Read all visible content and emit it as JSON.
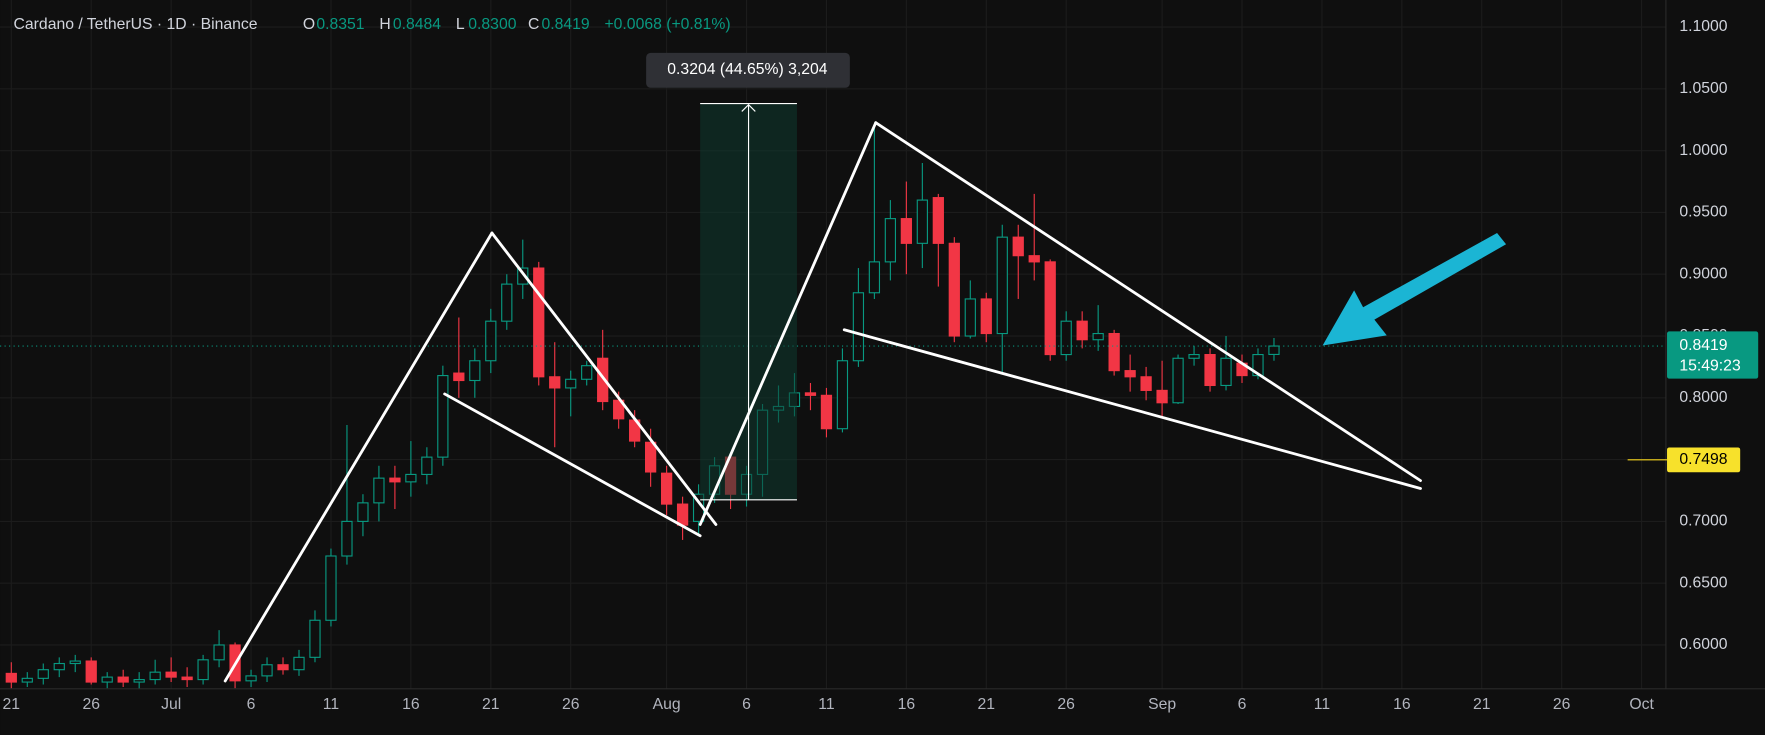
{
  "header": {
    "symbol": "Cardano / TetherUS · 1D · Binance",
    "o_label": "O",
    "open": "0.8351",
    "h_label": "H",
    "high": "0.8484",
    "l_label": "L",
    "low": "0.8300",
    "c_label": "C",
    "close": "0.8419",
    "change": "+0.0068 (+0.81%)"
  },
  "measure_label": "0.3204 (44.65%) 3,204",
  "last_price": {
    "value": 0.8419,
    "label": "0.8419"
  },
  "countdown": "15:49:23",
  "alert_price": {
    "value": 0.7498,
    "label": "0.7498"
  },
  "chart_data": {
    "type": "candlestick",
    "categories": [
      "21",
      null,
      null,
      null,
      null,
      "26",
      null,
      null,
      null,
      null,
      "Jul",
      null,
      null,
      null,
      null,
      "6",
      null,
      null,
      null,
      null,
      "11",
      null,
      null,
      null,
      null,
      "16",
      null,
      null,
      null,
      null,
      "21",
      null,
      null,
      null,
      null,
      "26",
      null,
      null,
      null,
      null,
      null,
      "Aug",
      null,
      null,
      null,
      null,
      "6",
      null,
      null,
      null,
      null,
      "11",
      null,
      null,
      null,
      null,
      "16",
      null,
      null,
      null,
      null,
      "21",
      null,
      null,
      null,
      null,
      "26",
      null,
      null,
      null,
      null,
      null,
      "Sep",
      null,
      null,
      null,
      null,
      "6",
      null,
      null,
      null,
      null,
      "11",
      null,
      null,
      null,
      null,
      "16",
      null,
      null,
      null,
      null,
      "21",
      null,
      null,
      null,
      null,
      "26",
      null,
      null,
      null,
      null,
      "Oct"
    ],
    "open": [
      0.577,
      0.57,
      0.573,
      0.58,
      0.585,
      0.587,
      0.57,
      0.574,
      0.57,
      0.572,
      0.578,
      0.574,
      0.572,
      0.588,
      0.6,
      0.571,
      0.575,
      0.584,
      0.58,
      0.59,
      0.62,
      0.672,
      0.7,
      0.715,
      0.735,
      0.732,
      0.738,
      0.752,
      0.82,
      0.814,
      0.83,
      0.862,
      0.892,
      0.905,
      0.817,
      0.808,
      0.815,
      0.832,
      0.798,
      0.782,
      0.764,
      0.739,
      0.714,
      0.7,
      0.722,
      0.752,
      0.722,
      0.738,
      0.79,
      0.793,
      0.804,
      0.802,
      0.775,
      0.83,
      0.885,
      0.91,
      0.945,
      0.925,
      0.962,
      0.925,
      0.85,
      0.88,
      0.852,
      0.93,
      0.915,
      0.91,
      0.835,
      0.862,
      0.847,
      0.852,
      0.822,
      0.817,
      0.806,
      0.796,
      0.832,
      0.835,
      0.81,
      0.828,
      0.818,
      0.8351,
      null,
      null,
      null,
      null,
      null,
      null,
      null,
      null,
      null,
      null,
      null,
      null,
      null,
      null,
      null,
      null,
      null,
      null,
      null,
      null,
      null,
      null,
      null
    ],
    "high": [
      0.586,
      0.578,
      0.585,
      0.59,
      0.592,
      0.59,
      0.578,
      0.58,
      0.578,
      0.588,
      0.59,
      0.582,
      0.592,
      0.612,
      0.602,
      0.58,
      0.59,
      0.59,
      0.596,
      0.628,
      0.678,
      0.778,
      0.722,
      0.745,
      0.745,
      0.765,
      0.76,
      0.826,
      0.865,
      0.84,
      0.872,
      0.9,
      0.928,
      0.91,
      0.845,
      0.822,
      0.83,
      0.855,
      0.805,
      0.79,
      0.775,
      0.745,
      0.72,
      0.73,
      0.752,
      0.755,
      0.745,
      0.795,
      0.81,
      0.82,
      0.812,
      0.808,
      0.84,
      0.905,
      1.02,
      0.96,
      0.975,
      0.99,
      0.965,
      0.93,
      0.895,
      0.885,
      0.94,
      0.94,
      0.965,
      0.912,
      0.87,
      0.87,
      0.875,
      0.855,
      0.835,
      0.825,
      0.83,
      0.835,
      0.842,
      0.84,
      0.85,
      0.835,
      0.84,
      0.8484,
      null,
      null,
      null,
      null,
      null,
      null,
      null,
      null,
      null,
      null,
      null,
      null,
      null,
      null,
      null,
      null,
      null,
      null,
      null,
      null,
      null,
      null,
      null
    ],
    "low": [
      0.565,
      0.566,
      0.568,
      0.574,
      0.578,
      0.568,
      0.565,
      0.566,
      0.564,
      0.568,
      0.57,
      0.566,
      0.568,
      0.582,
      0.565,
      0.566,
      0.57,
      0.576,
      0.575,
      0.586,
      0.615,
      0.665,
      0.688,
      0.7,
      0.71,
      0.72,
      0.73,
      0.745,
      0.8,
      0.8,
      0.82,
      0.855,
      0.88,
      0.81,
      0.76,
      0.785,
      0.81,
      0.79,
      0.775,
      0.76,
      0.728,
      0.705,
      0.685,
      0.69,
      0.715,
      0.71,
      0.712,
      0.72,
      0.78,
      0.785,
      0.79,
      0.768,
      0.772,
      0.825,
      0.88,
      0.895,
      0.9,
      0.905,
      0.89,
      0.845,
      0.848,
      0.845,
      0.82,
      0.88,
      0.895,
      0.83,
      0.83,
      0.84,
      0.838,
      0.818,
      0.805,
      0.798,
      0.785,
      0.795,
      0.826,
      0.805,
      0.806,
      0.812,
      0.815,
      0.83,
      null,
      null,
      null,
      null,
      null,
      null,
      null,
      null,
      null,
      null,
      null,
      null,
      null,
      null,
      null,
      null,
      null,
      null,
      null,
      null,
      null,
      null,
      null
    ],
    "close": [
      0.57,
      0.573,
      0.58,
      0.585,
      0.587,
      0.57,
      0.574,
      0.57,
      0.572,
      0.578,
      0.574,
      0.572,
      0.588,
      0.6,
      0.571,
      0.575,
      0.584,
      0.58,
      0.59,
      0.62,
      0.672,
      0.7,
      0.715,
      0.735,
      0.732,
      0.738,
      0.752,
      0.818,
      0.814,
      0.83,
      0.862,
      0.892,
      0.905,
      0.817,
      0.808,
      0.815,
      0.826,
      0.797,
      0.783,
      0.765,
      0.74,
      0.714,
      0.697,
      0.722,
      0.745,
      0.722,
      0.738,
      0.79,
      0.793,
      0.804,
      0.802,
      0.775,
      0.83,
      0.885,
      0.91,
      0.945,
      0.925,
      0.96,
      0.925,
      0.85,
      0.88,
      0.852,
      0.93,
      0.915,
      0.91,
      0.835,
      0.862,
      0.847,
      0.852,
      0.822,
      0.817,
      0.806,
      0.796,
      0.832,
      0.835,
      0.81,
      0.832,
      0.818,
      0.835,
      0.8419,
      null,
      null,
      null,
      null,
      null,
      null,
      null,
      null,
      null,
      null,
      null,
      null,
      null,
      null,
      null,
      null,
      null,
      null,
      null,
      null,
      null,
      null,
      null
    ],
    "up_color": "#089981",
    "down_color": "#f23645",
    "ylim": [
      0.5645,
      1.1219
    ],
    "yticks": [
      {
        "value": 0.6,
        "label": "0.6000"
      },
      {
        "value": 0.65,
        "label": "0.6500"
      },
      {
        "value": 0.7,
        "label": "0.7000"
      },
      {
        "value": 0.75,
        "label": "0.7500"
      },
      {
        "value": 0.8,
        "label": "0.8000"
      },
      {
        "value": 0.85,
        "label": "0.8500"
      },
      {
        "value": 0.9,
        "label": "0.9000"
      },
      {
        "value": 0.95,
        "label": "0.9500"
      },
      {
        "value": 1.0,
        "label": "1.0000"
      },
      {
        "value": 1.05,
        "label": "1.0500"
      },
      {
        "value": 1.1,
        "label": "1.1000"
      }
    ],
    "grid": true
  }
}
